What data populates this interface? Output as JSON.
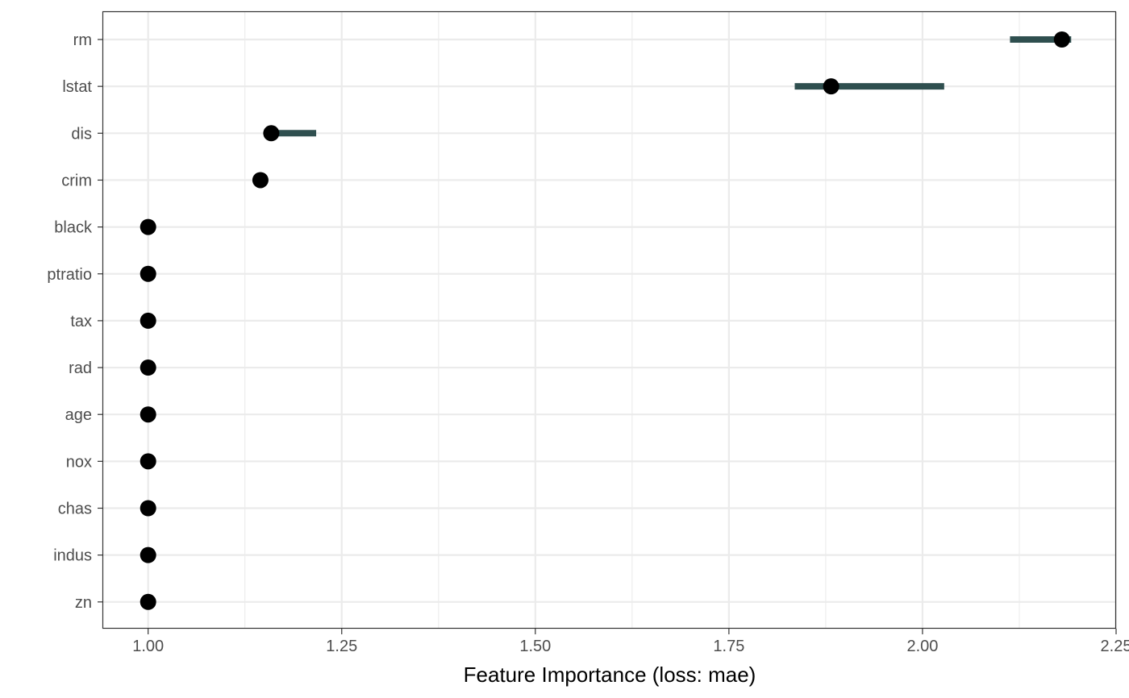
{
  "chart_data": {
    "type": "dot-interval",
    "title": "",
    "xlabel": "Feature Importance (loss: mae)",
    "ylabel": "",
    "xlim": [
      0.942,
      2.25
    ],
    "xticks": [
      1.0,
      1.25,
      1.5,
      1.75,
      2.0,
      2.25
    ],
    "xtick_labels": [
      "1.00",
      "1.25",
      "1.50",
      "1.75",
      "2.00",
      "2.25"
    ],
    "grid": true,
    "range_color": "#2f4f4f",
    "point_color": "#000000",
    "features": [
      {
        "name": "rm",
        "value": 2.18,
        "low": 2.113,
        "high": 2.192
      },
      {
        "name": "lstat",
        "value": 1.882,
        "low": 1.835,
        "high": 2.028
      },
      {
        "name": "dis",
        "value": 1.159,
        "low": 1.159,
        "high": 1.217
      },
      {
        "name": "crim",
        "value": 1.145,
        "low": 1.145,
        "high": 1.145
      },
      {
        "name": "black",
        "value": 1.0,
        "low": 1.0,
        "high": 1.0
      },
      {
        "name": "ptratio",
        "value": 1.0,
        "low": 1.0,
        "high": 1.0
      },
      {
        "name": "tax",
        "value": 1.0,
        "low": 1.0,
        "high": 1.0
      },
      {
        "name": "rad",
        "value": 1.0,
        "low": 1.0,
        "high": 1.0
      },
      {
        "name": "age",
        "value": 1.0,
        "low": 1.0,
        "high": 1.0
      },
      {
        "name": "nox",
        "value": 1.0,
        "low": 1.0,
        "high": 1.0
      },
      {
        "name": "chas",
        "value": 1.0,
        "low": 1.0,
        "high": 1.0
      },
      {
        "name": "indus",
        "value": 1.0,
        "low": 1.0,
        "high": 1.0
      },
      {
        "name": "zn",
        "value": 1.0,
        "low": 1.0,
        "high": 1.0
      }
    ]
  }
}
